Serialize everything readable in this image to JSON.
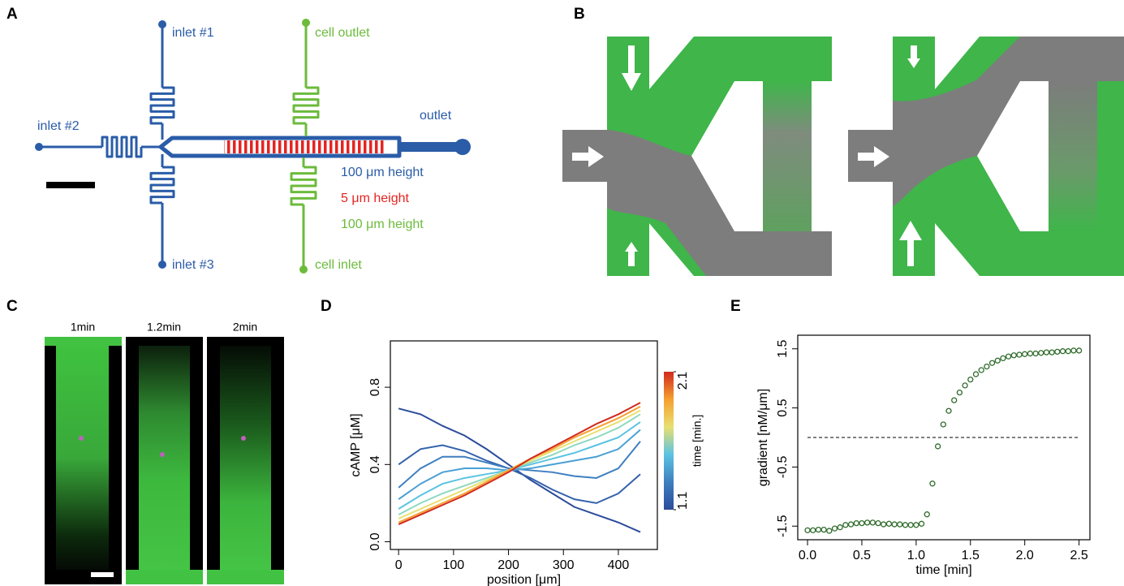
{
  "panel_labels": [
    "A",
    "B",
    "C",
    "D",
    "E"
  ],
  "panel_a": {
    "inlet_1": "inlet #1",
    "inlet_2": "inlet #2",
    "inlet_3": "inlet #3",
    "outlet": "outlet",
    "cell_outlet": "cell outlet",
    "cell_inlet": "cell inlet",
    "heights": [
      "100 μm height",
      "5 μm height",
      "100 μm height"
    ]
  },
  "panel_c": {
    "timepoints": [
      "1min",
      "1.2min",
      "2min"
    ]
  },
  "chart_data": [
    {
      "type": "line",
      "xlabel": "position [μm]",
      "ylabel": "cAMP [μM]",
      "x": [
        0,
        40,
        80,
        120,
        160,
        200,
        240,
        280,
        320,
        360,
        400,
        440
      ],
      "series": [
        {
          "color": "#2b4c9b",
          "values": [
            0.69,
            0.66,
            0.6,
            0.55,
            0.48,
            0.4,
            0.32,
            0.25,
            0.18,
            0.14,
            0.1,
            0.05
          ]
        },
        {
          "color": "#3462ac",
          "values": [
            0.4,
            0.48,
            0.5,
            0.47,
            0.42,
            0.38,
            0.33,
            0.27,
            0.22,
            0.2,
            0.25,
            0.35
          ]
        },
        {
          "color": "#3f7fc0",
          "values": [
            0.28,
            0.38,
            0.44,
            0.44,
            0.41,
            0.38,
            0.37,
            0.36,
            0.34,
            0.33,
            0.38,
            0.52
          ]
        },
        {
          "color": "#4aa0d4",
          "values": [
            0.22,
            0.3,
            0.36,
            0.38,
            0.38,
            0.37,
            0.38,
            0.4,
            0.42,
            0.44,
            0.48,
            0.58
          ]
        },
        {
          "color": "#5cc3e2",
          "values": [
            0.17,
            0.24,
            0.3,
            0.33,
            0.35,
            0.37,
            0.4,
            0.43,
            0.46,
            0.5,
            0.54,
            0.62
          ]
        },
        {
          "color": "#8fd8c0",
          "values": [
            0.14,
            0.2,
            0.25,
            0.29,
            0.33,
            0.37,
            0.41,
            0.45,
            0.5,
            0.54,
            0.59,
            0.66
          ]
        },
        {
          "color": "#e8e070",
          "values": [
            0.12,
            0.17,
            0.22,
            0.27,
            0.32,
            0.37,
            0.42,
            0.47,
            0.52,
            0.57,
            0.62,
            0.68
          ]
        },
        {
          "color": "#f5a030",
          "values": [
            0.1,
            0.15,
            0.2,
            0.25,
            0.31,
            0.37,
            0.43,
            0.48,
            0.54,
            0.59,
            0.64,
            0.7
          ]
        },
        {
          "color": "#d02a1e",
          "values": [
            0.09,
            0.14,
            0.19,
            0.24,
            0.3,
            0.36,
            0.43,
            0.49,
            0.55,
            0.61,
            0.66,
            0.72
          ]
        }
      ],
      "xlim": [
        -15,
        471
      ],
      "ylim": [
        -0.04,
        1.04
      ],
      "xticks": [
        0,
        100,
        200,
        300,
        400
      ],
      "yticks": [
        {
          "value": 0,
          "label": "0.0"
        },
        0.4,
        0.8
      ],
      "colorbar": {
        "label": "time [min.]",
        "lim": [
          1.1,
          2.1
        ],
        "ticks": [
          1.1,
          2.1
        ],
        "colors": [
          "#2b4c9b",
          "#3f7fc0",
          "#5cc3e2",
          "#e8e070",
          "#f5a030",
          "#d02a1e"
        ]
      }
    },
    {
      "type": "scatter",
      "xlabel": "time [min]",
      "ylabel": "gradient [nM/μm]",
      "x": [
        0,
        0.05,
        0.1,
        0.15,
        0.2,
        0.25,
        0.3,
        0.35,
        0.4,
        0.45,
        0.5,
        0.55,
        0.6,
        0.65,
        0.7,
        0.75,
        0.8,
        0.85,
        0.9,
        0.95,
        1.0,
        1.05,
        1.1,
        1.15,
        1.2,
        1.25,
        1.3,
        1.35,
        1.4,
        1.45,
        1.5,
        1.55,
        1.6,
        1.65,
        1.7,
        1.75,
        1.8,
        1.85,
        1.9,
        1.95,
        2.0,
        2.05,
        2.1,
        2.15,
        2.2,
        2.25,
        2.3,
        2.35,
        2.4,
        2.45,
        2.5
      ],
      "series": [
        {
          "color": "#2e6b2a",
          "values": [
            -1.57,
            -1.57,
            -1.56,
            -1.56,
            -1.58,
            -1.54,
            -1.52,
            -1.48,
            -1.47,
            -1.45,
            -1.45,
            -1.44,
            -1.44,
            -1.45,
            -1.47,
            -1.46,
            -1.47,
            -1.47,
            -1.48,
            -1.48,
            -1.48,
            -1.46,
            -1.3,
            -0.78,
            -0.15,
            0.22,
            0.45,
            0.63,
            0.76,
            0.88,
            0.98,
            1.07,
            1.14,
            1.2,
            1.26,
            1.3,
            1.34,
            1.37,
            1.39,
            1.4,
            1.41,
            1.42,
            1.42,
            1.43,
            1.44,
            1.44,
            1.45,
            1.46,
            1.46,
            1.47,
            1.47
          ]
        }
      ],
      "xlim": [
        -0.09,
        2.6
      ],
      "ylim": [
        -1.73,
        1.73
      ],
      "xticks": [
        {
          "value": 0,
          "label": "0.0"
        },
        0.5,
        {
          "value": 1,
          "label": "1.0"
        },
        1.5,
        {
          "value": 2,
          "label": "2.0"
        },
        2.5
      ],
      "yticks": [
        -1.5,
        -0.5,
        0.5,
        1.5
      ],
      "reference_line": 0
    }
  ]
}
